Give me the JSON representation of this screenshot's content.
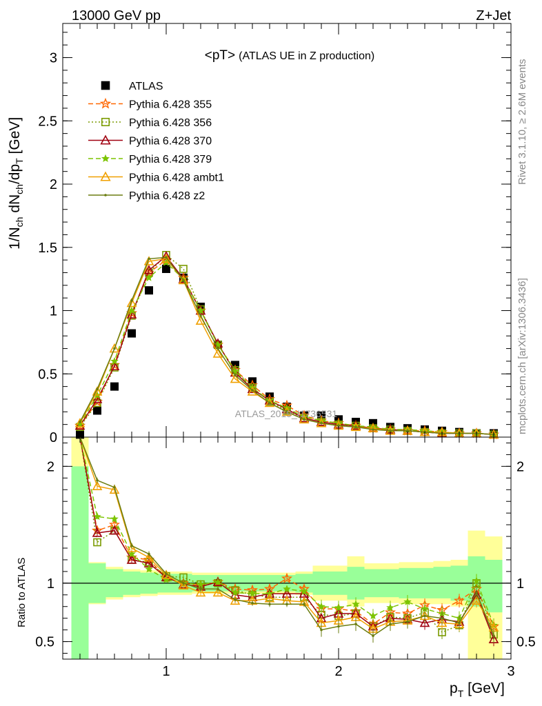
{
  "header": {
    "left": "13000 GeV pp",
    "right": "Z+Jet"
  },
  "side_labels": {
    "rivet": "Rivet 3.1.10, ≥ 2.6M events",
    "mcplots": "mcplots.cern.ch [arXiv:1306.3436]"
  },
  "watermark": "ATLAS_2019_I1736531",
  "chart_data": [
    {
      "type": "scatter",
      "title": "<pT> (ATLAS UE in Z production)",
      "title_main": "<pT>",
      "title_sub": "(ATLAS UE in Z production)",
      "ylabel": "1/N_ch dN_ch/dp_T [GeV]",
      "xlim": [
        0.4,
        3.0
      ],
      "ylim": [
        0,
        3.27
      ],
      "yticks": [
        0,
        0.5,
        1,
        1.5,
        2,
        2.5,
        3
      ],
      "ytick_labels": [
        "0",
        "0.5",
        "1",
        "1.5",
        "2",
        "2.5",
        "3"
      ],
      "legend_position": "top-left",
      "x": [
        0.5,
        0.6,
        0.7,
        0.8,
        0.9,
        1.0,
        1.1,
        1.2,
        1.3,
        1.4,
        1.5,
        1.6,
        1.7,
        1.8,
        1.9,
        2.0,
        2.1,
        2.2,
        2.3,
        2.4,
        2.5,
        2.6,
        2.7,
        2.8,
        2.9
      ],
      "series": [
        {
          "name": "ATLAS",
          "color": "#000000",
          "marker": "square-filled",
          "style": "none",
          "values": [
            0.02,
            0.21,
            0.4,
            0.82,
            1.16,
            1.33,
            1.26,
            1.03,
            0.73,
            0.57,
            0.44,
            0.32,
            0.24,
            0.17,
            0.17,
            0.14,
            0.12,
            0.11,
            0.08,
            0.07,
            0.06,
            0.05,
            0.04,
            0.03,
            0.03
          ]
        },
        {
          "name": "Pythia 6.428 355",
          "color": "#ff6600",
          "marker": "star-open",
          "style": "dashed",
          "values": [
            0.09,
            0.28,
            0.57,
            0.98,
            1.3,
            1.4,
            1.26,
            1.0,
            0.73,
            0.53,
            0.41,
            0.3,
            0.25,
            0.17,
            0.13,
            0.11,
            0.09,
            0.07,
            0.06,
            0.05,
            0.05,
            0.04,
            0.03,
            0.03,
            0.02
          ]
        },
        {
          "name": "Pythia 6.428 356",
          "color": "#7a9a00",
          "marker": "square-open",
          "style": "dotted",
          "values": [
            0.08,
            0.27,
            0.55,
            0.96,
            1.3,
            1.44,
            1.33,
            1.01,
            0.73,
            0.53,
            0.39,
            0.28,
            0.21,
            0.15,
            0.12,
            0.1,
            0.09,
            0.07,
            0.06,
            0.05,
            0.04,
            0.03,
            0.03,
            0.03,
            0.02
          ]
        },
        {
          "name": "Pythia 6.428 370",
          "color": "#a00010",
          "marker": "triangle-open",
          "style": "solid",
          "values": [
            0.09,
            0.3,
            0.56,
            0.97,
            1.32,
            1.43,
            1.25,
            1.0,
            0.74,
            0.51,
            0.38,
            0.29,
            0.22,
            0.15,
            0.12,
            0.1,
            0.09,
            0.07,
            0.06,
            0.05,
            0.04,
            0.03,
            0.03,
            0.03,
            0.02
          ]
        },
        {
          "name": "Pythia 6.428 379",
          "color": "#7cc400",
          "marker": "star-filled",
          "style": "dashed",
          "values": [
            0.1,
            0.33,
            0.6,
            1.0,
            1.26,
            1.38,
            1.25,
            1.0,
            0.73,
            0.52,
            0.39,
            0.29,
            0.23,
            0.16,
            0.13,
            0.11,
            0.09,
            0.08,
            0.06,
            0.06,
            0.05,
            0.04,
            0.03,
            0.03,
            0.02
          ]
        },
        {
          "name": "Pythia 6.428 ambt1",
          "color": "#f0a000",
          "marker": "triangle-open",
          "style": "solid",
          "values": [
            0.11,
            0.36,
            0.7,
            1.06,
            1.39,
            1.41,
            1.24,
            0.92,
            0.66,
            0.46,
            0.36,
            0.27,
            0.2,
            0.14,
            0.11,
            0.09,
            0.08,
            0.07,
            0.05,
            0.05,
            0.04,
            0.04,
            0.03,
            0.03,
            0.02
          ]
        },
        {
          "name": "Pythia 6.428 z2",
          "color": "#6b7d10",
          "marker": "dot",
          "style": "solid",
          "values": [
            0.12,
            0.38,
            0.7,
            1.08,
            1.41,
            1.42,
            1.24,
            0.96,
            0.7,
            0.49,
            0.37,
            0.27,
            0.2,
            0.14,
            0.11,
            0.09,
            0.08,
            0.06,
            0.05,
            0.05,
            0.04,
            0.03,
            0.03,
            0.03,
            0.02
          ]
        }
      ]
    },
    {
      "type": "line",
      "ylabel": "Ratio to ATLAS",
      "xlabel": "p_T [GeV]",
      "xlim": [
        0.4,
        3.0
      ],
      "ylim": [
        0.35,
        2.25
      ],
      "xticks": [
        1,
        2,
        3
      ],
      "xtick_labels": [
        "1",
        "2",
        "3"
      ],
      "yticks": [
        0.5,
        1,
        2
      ],
      "ytick_labels": [
        "0.5",
        "1",
        "2"
      ],
      "x": [
        0.5,
        0.6,
        0.7,
        0.8,
        0.9,
        1.0,
        1.1,
        1.2,
        1.3,
        1.4,
        1.5,
        1.6,
        1.7,
        1.8,
        1.9,
        2.0,
        2.1,
        2.2,
        2.3,
        2.4,
        2.5,
        2.6,
        2.7,
        2.8,
        2.9
      ],
      "bands": {
        "bin_edges": [
          0.45,
          0.55,
          0.65,
          0.75,
          0.85,
          0.95,
          1.05,
          1.15,
          1.25,
          1.35,
          1.45,
          1.55,
          1.65,
          1.75,
          1.85,
          1.95,
          2.05,
          2.15,
          2.25,
          2.35,
          2.45,
          2.55,
          2.65,
          2.75,
          2.85,
          2.95
        ],
        "stat_color": "#99ff99",
        "total_color": "#ffff99",
        "stat_lo": [
          0.35,
          0.83,
          0.88,
          0.9,
          0.91,
          0.92,
          0.92,
          0.93,
          0.93,
          0.93,
          0.93,
          0.93,
          0.93,
          0.92,
          0.9,
          0.9,
          0.86,
          0.88,
          0.88,
          0.87,
          0.87,
          0.87,
          0.85,
          0.8,
          0.75
        ],
        "stat_hi": [
          2.0,
          1.17,
          1.12,
          1.1,
          1.09,
          1.08,
          1.08,
          1.07,
          1.07,
          1.07,
          1.07,
          1.07,
          1.07,
          1.08,
          1.1,
          1.1,
          1.14,
          1.12,
          1.12,
          1.13,
          1.13,
          1.14,
          1.15,
          1.23,
          1.2
        ],
        "total_lo": [
          0.35,
          0.82,
          0.86,
          0.88,
          0.89,
          0.9,
          0.9,
          0.91,
          0.91,
          0.91,
          0.91,
          0.91,
          0.91,
          0.9,
          0.85,
          0.85,
          0.8,
          0.83,
          0.83,
          0.82,
          0.82,
          0.82,
          0.8,
          0.35,
          0.35
        ],
        "total_hi": [
          2.25,
          1.18,
          1.14,
          1.12,
          1.11,
          1.1,
          1.1,
          1.09,
          1.09,
          1.09,
          1.09,
          1.09,
          1.09,
          1.1,
          1.15,
          1.15,
          1.23,
          1.17,
          1.17,
          1.18,
          1.18,
          1.19,
          1.2,
          1.45,
          1.4
        ]
      },
      "series": [
        {
          "name": "Pythia 6.428 355",
          "values": [
            2.6,
            1.45,
            1.5,
            1.22,
            1.2,
            1.05,
            1.0,
            0.98,
            1.01,
            0.95,
            0.94,
            0.95,
            1.04,
            0.95,
            0.78,
            0.78,
            0.76,
            0.65,
            0.75,
            0.74,
            0.81,
            0.77,
            0.85,
            0.95,
            0.63
          ]
        },
        {
          "name": "Pythia 6.428 356",
          "values": [
            2.3,
            1.35,
            1.45,
            1.2,
            1.18,
            1.06,
            1.05,
            0.99,
            1.0,
            0.94,
            0.9,
            0.88,
            0.88,
            0.88,
            0.73,
            0.72,
            0.74,
            0.63,
            0.71,
            0.7,
            0.75,
            0.58,
            0.64,
            1.0,
            0.56
          ]
        },
        {
          "name": "Pythia 6.428 370",
          "values": [
            2.4,
            1.43,
            1.45,
            1.2,
            1.17,
            1.05,
            0.99,
            0.97,
            1.01,
            0.9,
            0.88,
            0.91,
            0.91,
            0.91,
            0.7,
            0.74,
            0.74,
            0.63,
            0.7,
            0.69,
            0.66,
            0.69,
            0.67,
            0.9,
            0.52
          ]
        },
        {
          "name": "Pythia 6.428 379",
          "values": [
            2.7,
            1.57,
            1.55,
            1.25,
            1.12,
            1.03,
            1.0,
            0.99,
            1.01,
            0.92,
            0.91,
            0.91,
            0.95,
            0.93,
            0.8,
            0.79,
            0.82,
            0.72,
            0.79,
            0.84,
            0.78,
            0.74,
            0.7,
            1.02,
            0.64
          ]
        },
        {
          "name": "Pythia 6.428 ambt1",
          "values": [
            3.0,
            1.83,
            1.8,
            1.3,
            1.22,
            1.07,
            0.98,
            0.92,
            0.92,
            0.85,
            0.85,
            0.87,
            0.85,
            0.84,
            0.66,
            0.68,
            0.71,
            0.61,
            0.67,
            0.68,
            0.72,
            0.66,
            0.65,
            0.85,
            0.62
          ]
        },
        {
          "name": "Pythia 6.428 z2",
          "values": [
            3.0,
            1.88,
            1.82,
            1.32,
            1.25,
            1.08,
            1.0,
            0.95,
            0.95,
            0.86,
            0.83,
            0.82,
            0.82,
            0.82,
            0.6,
            0.63,
            0.65,
            0.55,
            0.65,
            0.67,
            0.72,
            0.7,
            0.66,
            0.92,
            0.55
          ]
        }
      ]
    }
  ]
}
